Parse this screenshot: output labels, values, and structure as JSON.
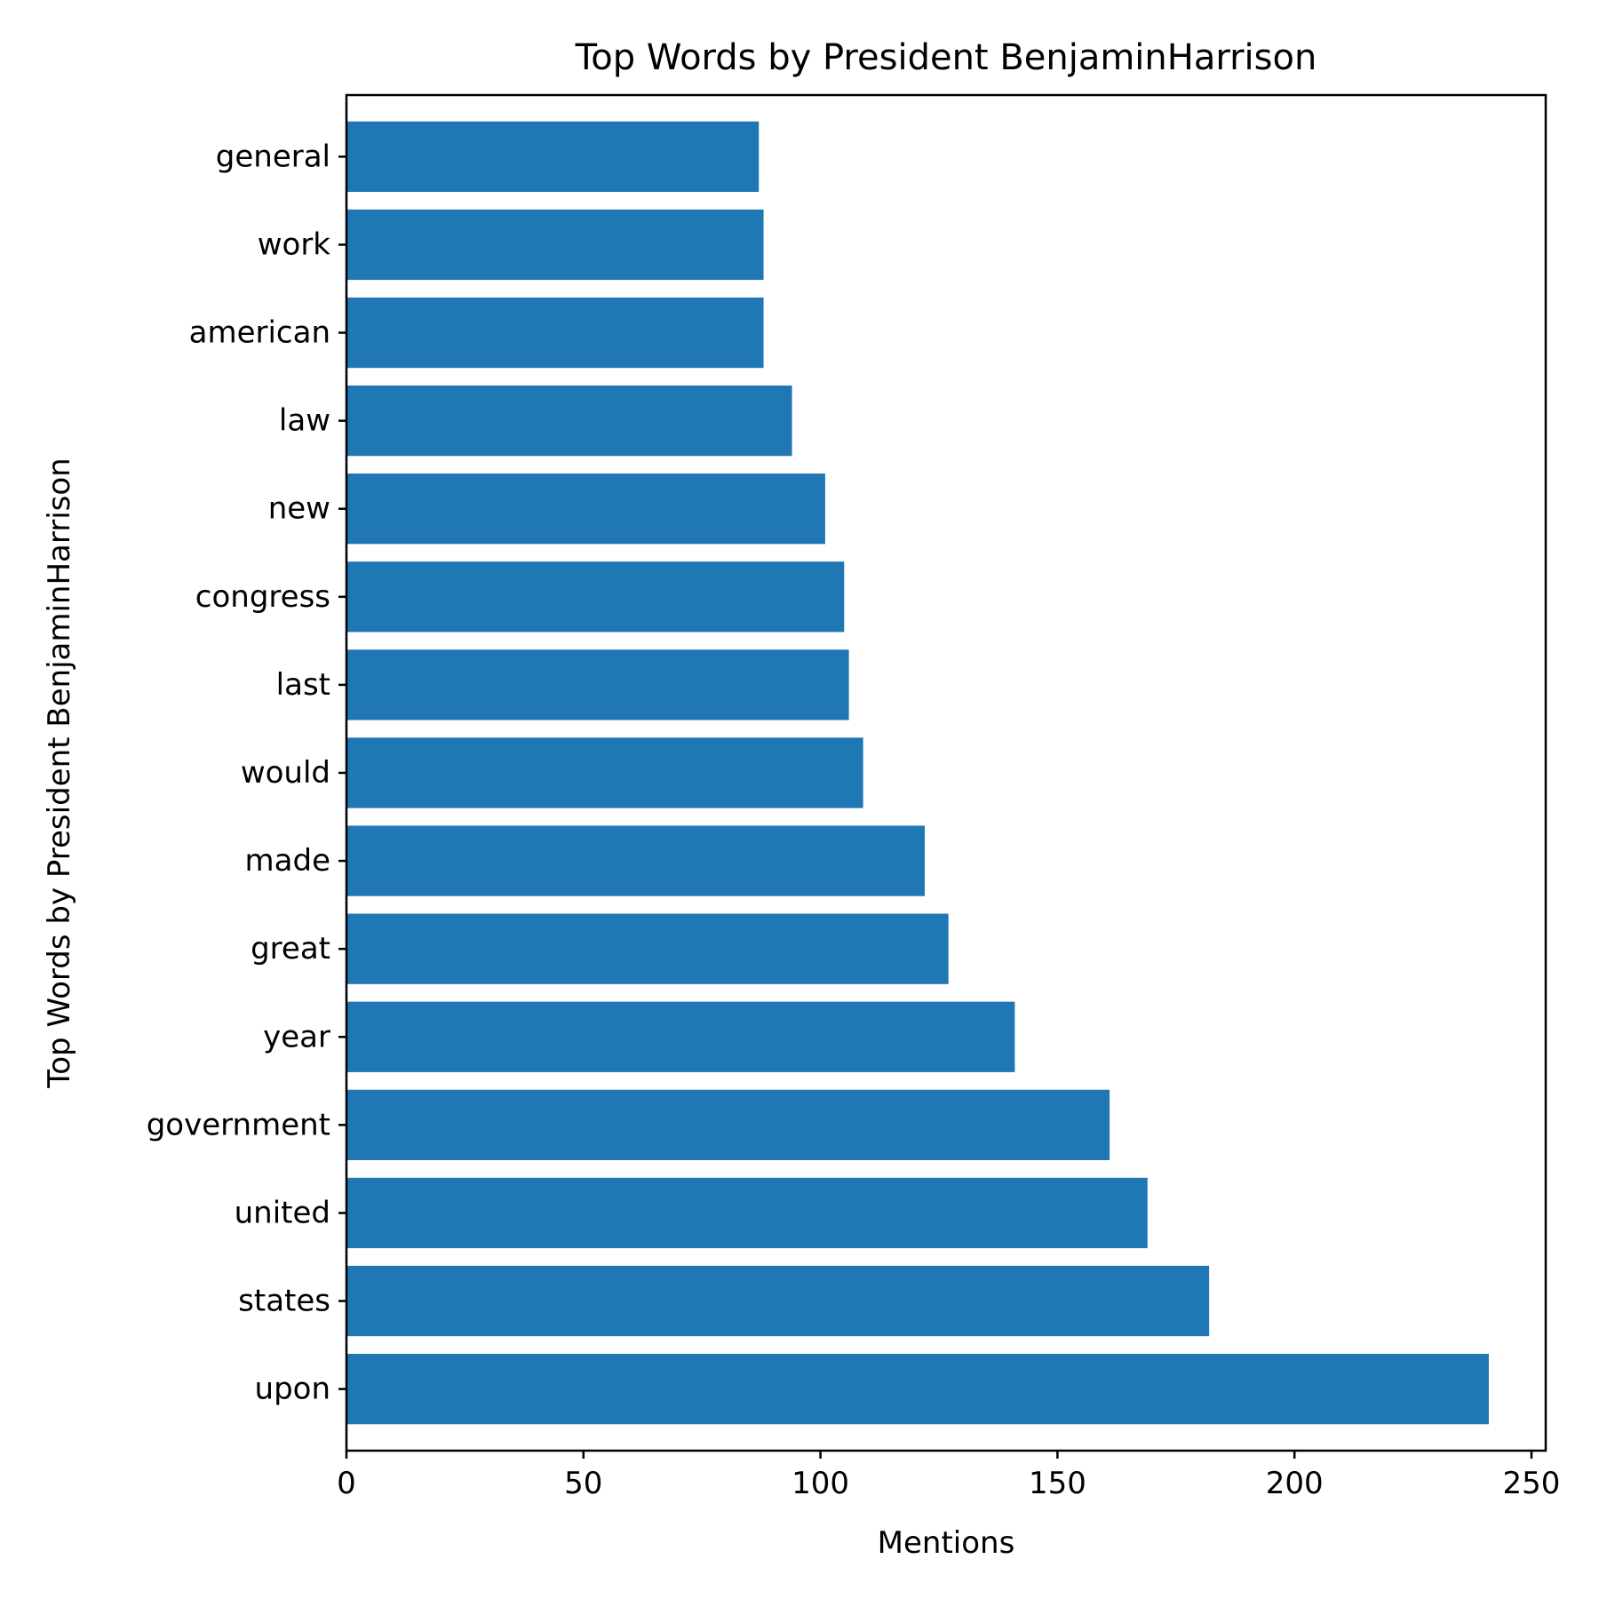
{
  "chart_data": {
    "type": "bar",
    "orientation": "horizontal",
    "title": "Top Words by President BenjaminHarrison",
    "xlabel": "Mentions",
    "ylabel": "Top Words by President BenjaminHarrison",
    "categories": [
      "upon",
      "states",
      "united",
      "government",
      "year",
      "great",
      "made",
      "would",
      "last",
      "congress",
      "new",
      "law",
      "american",
      "work",
      "general"
    ],
    "values": [
      241,
      182,
      169,
      161,
      141,
      127,
      122,
      109,
      106,
      105,
      101,
      94,
      88,
      88,
      87
    ],
    "xlim": [
      0,
      253
    ],
    "xticks": [
      0,
      50,
      100,
      150,
      200,
      250
    ],
    "grid": false,
    "bar_color": "#1f77b4"
  }
}
